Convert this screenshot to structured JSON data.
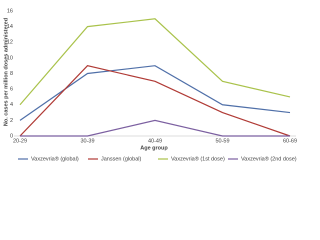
{
  "chart_data": {
    "type": "line",
    "y_label": "No. cases per million doses administered",
    "x_label": "Age group",
    "categories": [
      "20-29",
      "30-39",
      "40-49",
      "50-59",
      "60-69"
    ],
    "series": [
      {
        "name": "Vaxzevria® (global)",
        "color": "#4f6fa8",
        "values": [
          2,
          8,
          9,
          4,
          3
        ]
      },
      {
        "name": "Janssen (global)",
        "color": "#b03a35",
        "values": [
          0,
          9,
          7,
          3,
          0
        ]
      },
      {
        "name": "Vaxzevria® (1st dose)",
        "color": "#a9c24a",
        "values": [
          4,
          14,
          15,
          7,
          5
        ]
      },
      {
        "name": "Vaxzevria® (2nd dose)",
        "color": "#7b5fa0",
        "values": [
          0,
          0,
          2,
          0,
          0
        ]
      }
    ],
    "ylim": [
      0,
      16
    ],
    "yticks": [
      0,
      2,
      4,
      6,
      8,
      10,
      12,
      14,
      16
    ],
    "grid": false
  }
}
